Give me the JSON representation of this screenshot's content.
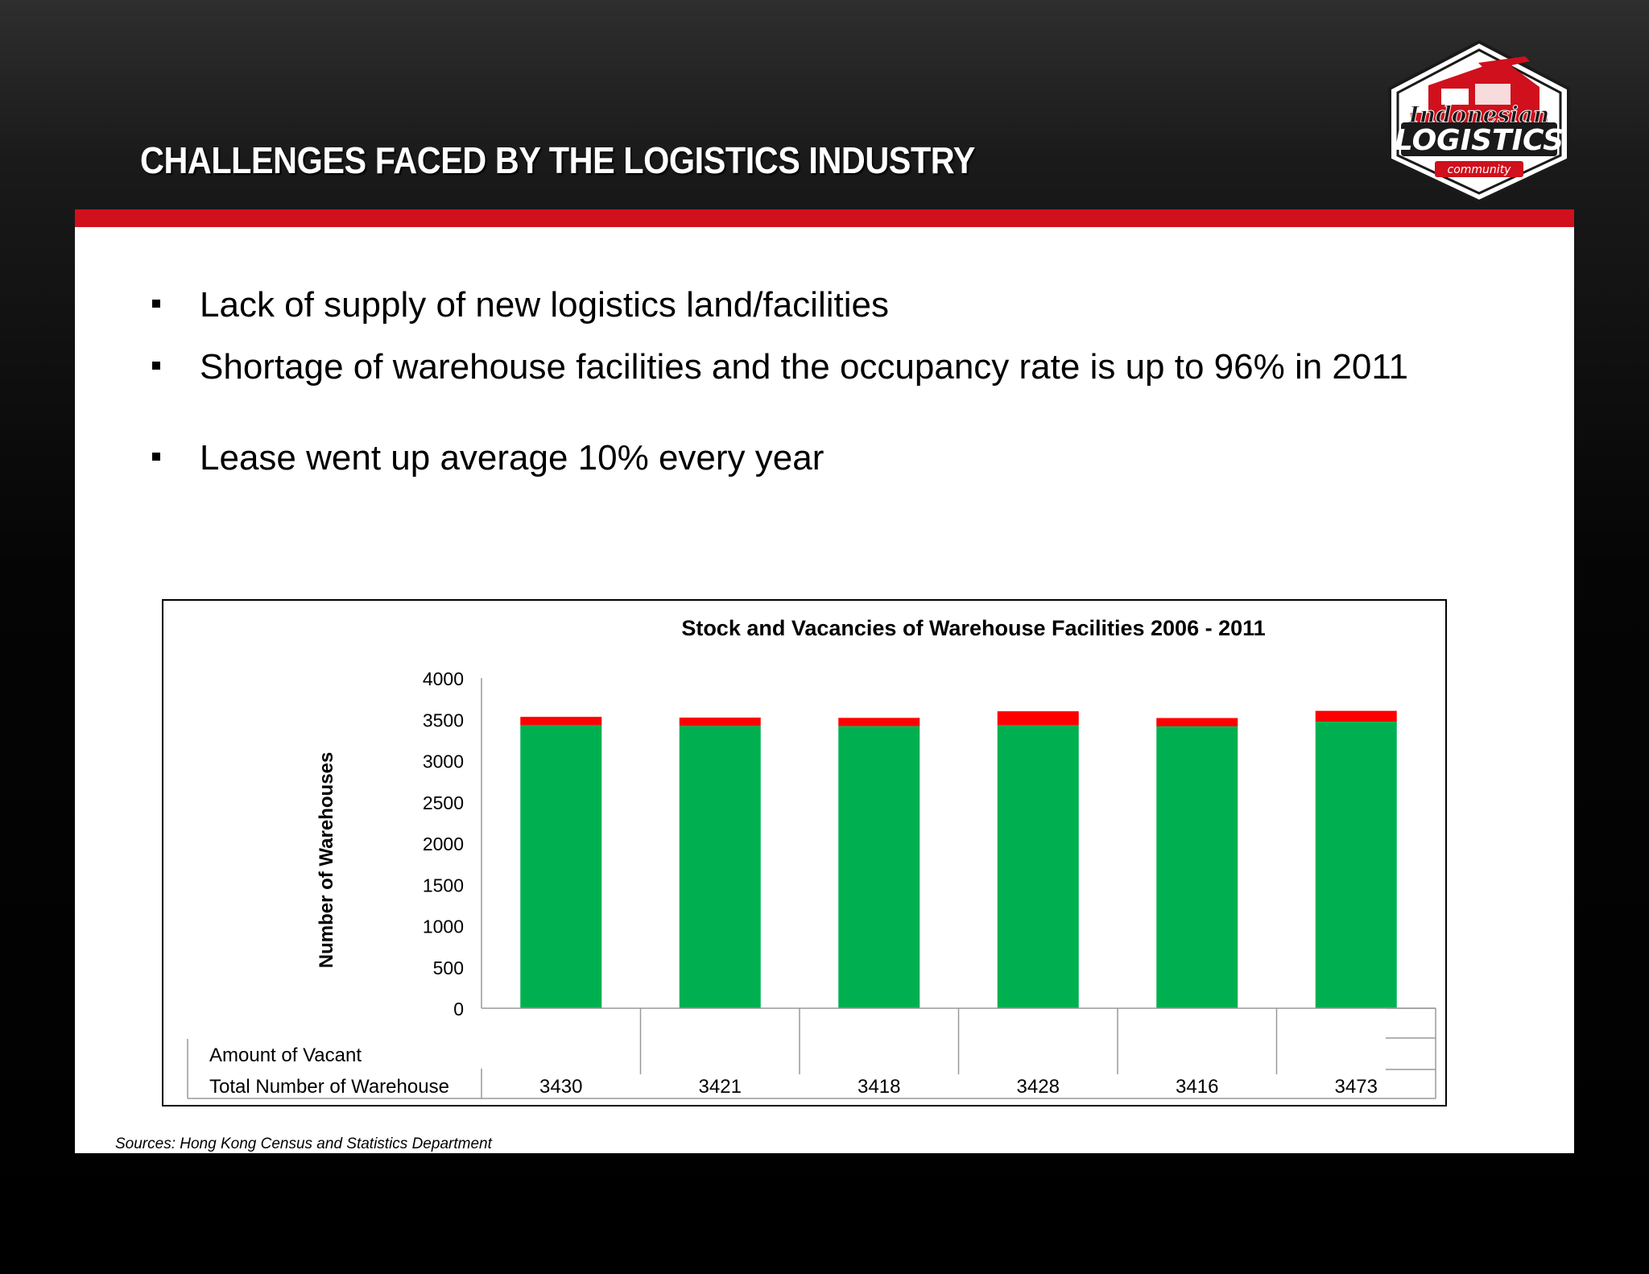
{
  "slide": {
    "title": "CHALLENGES FACED BY THE LOGISTICS INDUSTRY",
    "bullets": [
      "Lack of supply of new logistics land/facilities",
      "Shortage of warehouse facilities and the occupancy rate is up to 96% in 2011",
      "Lease went up average 10% every year"
    ],
    "source": "Sources: Hong Kong Census and Statistics Department"
  },
  "logo": {
    "line1": "Indonesian",
    "line2": "LOGISTICS",
    "line3": "community",
    "icon": "truck-plane-ship-logo-icon"
  },
  "colors": {
    "accent_red": "#d0101c",
    "occupied_green": "#00b050",
    "vacant_red": "#ff0000"
  },
  "chart_data": {
    "type": "bar",
    "stacked": true,
    "title": "Stock and Vacancies of Warehouse Facilities 2006 - 2011",
    "ylabel": "Number of Warehouses",
    "ylim": [
      0,
      4000
    ],
    "yticks": [
      0,
      500,
      1000,
      1500,
      2000,
      2500,
      3000,
      3500,
      4000
    ],
    "categories": [
      "",
      "",
      "",
      "",
      "",
      ""
    ],
    "series": [
      {
        "name": "Total Number of Warehouse",
        "color": "#00b050",
        "values": [
          3430,
          3421,
          3418,
          3428,
          3416,
          3473
        ]
      },
      {
        "name": "Amount of Vacant",
        "color": "#ff0000",
        "values": [
          100,
          100,
          100,
          170,
          100,
          130
        ]
      }
    ],
    "table_rows": [
      {
        "label": "Amount of Vacant",
        "values": [
          "",
          "",
          "",
          "",
          "",
          ""
        ]
      },
      {
        "label": "Total Number of Warehouse",
        "values": [
          "3430",
          "3421",
          "3418",
          "3428",
          "3416",
          "3473"
        ]
      }
    ],
    "grid": false,
    "legend": "data-table"
  }
}
